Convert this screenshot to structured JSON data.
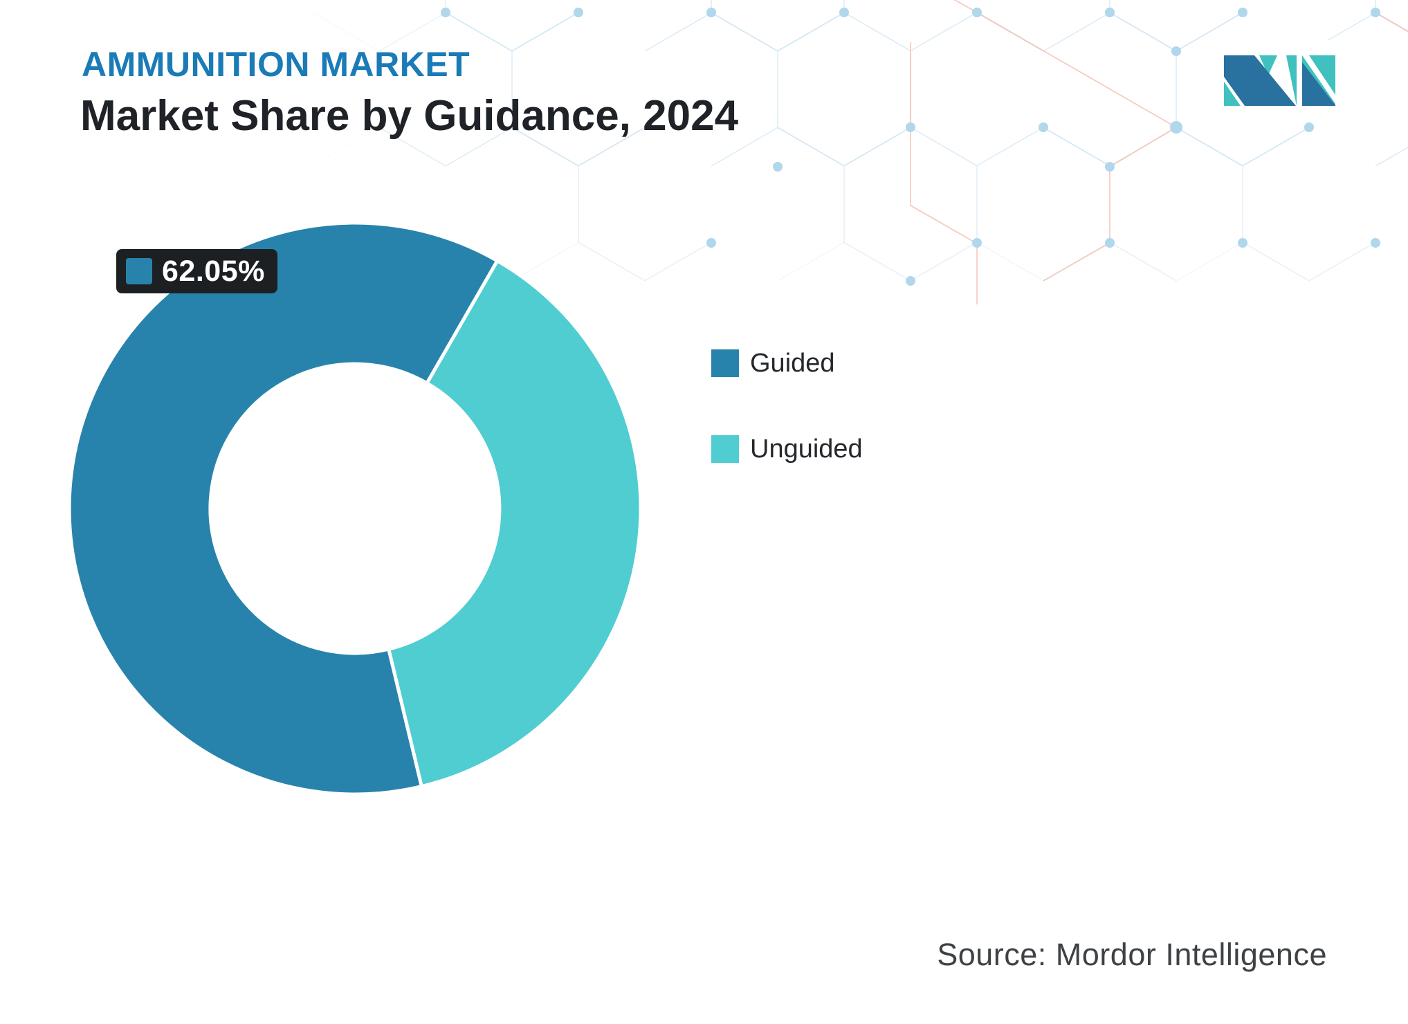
{
  "header": {
    "eyebrow": "AMMUNITION MARKET",
    "title": "Market Share by Guidance, 2024"
  },
  "chart_data": {
    "type": "pie",
    "title": "Market Share by Guidance, 2024",
    "unit": "%",
    "donut": true,
    "inner_radius_ratio": 0.505,
    "start_angle_deg": 166.5,
    "legend_position": "right",
    "slices": [
      {
        "label": "Guided",
        "value": 62.05,
        "color": "#2883ac"
      },
      {
        "label": "Unguided",
        "value": 37.95,
        "color": "#50cdd0"
      }
    ],
    "data_label": {
      "text": "62.05%",
      "series": "Guided"
    }
  },
  "source": {
    "text": "Source: Mordor Intelligence"
  },
  "logo": {
    "name": "mordor-intelligence-logo",
    "blue": "#29719f",
    "teal": "#40c1bf"
  },
  "theme": {
    "eyebrow_blue": "#1a7bb7",
    "title_dark": "#1f2227",
    "label_bg": "#1d2023",
    "hex_line": "#d3e6f2",
    "hex_dot": "#b0d7ec",
    "hex_accent": "#f6bcae",
    "slice_border": "#ffffff"
  }
}
